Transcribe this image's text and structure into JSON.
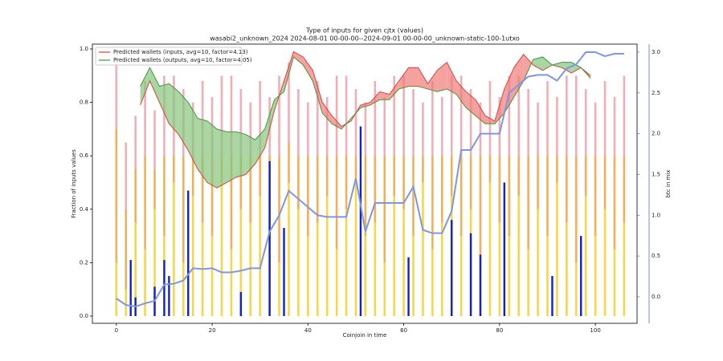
{
  "chart_data": {
    "type": "combo",
    "title": "Type of inputs for given cjtx (values)",
    "subtitle": "wasabi2_unknown_2024 2024-08-01 00-00-00--2024-09-01 00-00-00_unknown-static-100-1utxo",
    "xlabel": "Coinjoin in time",
    "ylabel": "Fraction of inputs values",
    "y2label": "btc in mix",
    "y2label_color": "#4a6ee0",
    "xlim": [
      -5,
      108.7
    ],
    "ylim": [
      -0.027,
      1.018
    ],
    "y2lim": [
      -0.325,
      3.098
    ],
    "xticks": [
      0,
      20,
      40,
      60,
      80,
      100
    ],
    "yticks": [
      {
        "value": 0,
        "label": "0.0"
      },
      {
        "value": 0.2,
        "label": "0.2"
      },
      {
        "value": 0.4,
        "label": "0.4"
      },
      {
        "value": 0.6,
        "label": "0.6"
      },
      {
        "value": 0.8,
        "label": "0.8"
      },
      {
        "value": 1,
        "label": "1.0"
      }
    ],
    "y2ticks": [
      {
        "value": 0,
        "label": "0.0"
      },
      {
        "value": 0.5,
        "label": "0.5"
      },
      {
        "value": 1,
        "label": "1.0"
      },
      {
        "value": 1.5,
        "label": "1.5"
      },
      {
        "value": 2,
        "label": "2.0"
      },
      {
        "value": 2.5,
        "label": "2.5"
      },
      {
        "value": 3,
        "label": "3.0"
      }
    ],
    "legend": "upper left",
    "bar_x": [
      0,
      2,
      4,
      6,
      8,
      10,
      12,
      14,
      16,
      18,
      20,
      22,
      24,
      26,
      28,
      30,
      32,
      34,
      36,
      38,
      40,
      42,
      44,
      46,
      48,
      50,
      52,
      54,
      56,
      58,
      60,
      62,
      64,
      66,
      68,
      70,
      72,
      74,
      76,
      78,
      80,
      82,
      84,
      86,
      88,
      90,
      92,
      94,
      96,
      98,
      100,
      102,
      104,
      106
    ],
    "stacks": [
      {
        "color": "#f5cf2a",
        "values": [
          0.2,
          0.1,
          0.35,
          0.25,
          0.4,
          0.3,
          0.5,
          0.2,
          0.45,
          0.35,
          0.3,
          0.5,
          0.25,
          0.4,
          0.35,
          0.45,
          0.3,
          0.2,
          0.5,
          0.4,
          0.3,
          0.35,
          0.45,
          0.25,
          0.4,
          0.5,
          0.3,
          0.35,
          0.2,
          0.45,
          0.4,
          0.3,
          0.5,
          0.25,
          0.35,
          0.45,
          0.3,
          0.4,
          0.2,
          0.5,
          0.35,
          0.3,
          0.45,
          0.25,
          0.4,
          0.3,
          0.5,
          0.35,
          0.2,
          0.45,
          0.3,
          0.4,
          0.25,
          0.35
        ]
      },
      {
        "color": "#eea23a",
        "values": [
          0.5,
          0.3,
          0.2,
          0.35,
          0.15,
          0.3,
          0.1,
          0.4,
          0.15,
          0.25,
          0.3,
          0.1,
          0.35,
          0.2,
          0.25,
          0.15,
          0.3,
          0.4,
          0.15,
          0.2,
          0.3,
          0.25,
          0.15,
          0.35,
          0.2,
          0.1,
          0.3,
          0.25,
          0.4,
          0.15,
          0.2,
          0.3,
          0.1,
          0.35,
          0.25,
          0.15,
          0.3,
          0.2,
          0.4,
          0.1,
          0.25,
          0.3,
          0.15,
          0.35,
          0.2,
          0.3,
          0.1,
          0.25,
          0.4,
          0.15,
          0.3,
          0.2,
          0.35,
          0.25
        ]
      },
      {
        "color": "#eea0a8",
        "values": [
          0.3,
          0.25,
          0.2,
          0.28,
          0.22,
          0.3,
          0.3,
          0.25,
          0.2,
          0.28,
          0.22,
          0.3,
          0.3,
          0.25,
          0.2,
          0.28,
          0.22,
          0.3,
          0.3,
          0.25,
          0.2,
          0.28,
          0.22,
          0.3,
          0.3,
          0.25,
          0.2,
          0.28,
          0.22,
          0.3,
          0.3,
          0.25,
          0.2,
          0.28,
          0.22,
          0.3,
          0.3,
          0.25,
          0.2,
          0.28,
          0.22,
          0.3,
          0.3,
          0.25,
          0.2,
          0.28,
          0.22,
          0.3,
          0.3,
          0.25,
          0.2,
          0.28,
          0.22,
          0.3
        ]
      }
    ],
    "blue_bars": {
      "color": "#1020d8",
      "x": [
        3,
        4,
        8,
        10,
        11,
        15,
        26,
        32,
        35,
        51,
        61,
        70,
        74,
        76,
        81,
        91,
        97
      ],
      "values": [
        0.21,
        0.07,
        0.11,
        0.21,
        0.15,
        0.47,
        0.09,
        0.58,
        0.33,
        0.71,
        0.22,
        0.36,
        0.31,
        0.23,
        0.5,
        0.15,
        0.3
      ]
    },
    "series": [
      {
        "name": "Predicted wallets (inputs, avg=10, factor=4.13)",
        "color": "#e0403c",
        "fill": "#f07a78",
        "x": [
          5,
          7,
          9,
          11,
          13,
          15,
          17,
          19,
          21,
          23,
          25,
          27,
          29,
          31,
          33,
          35,
          37,
          39,
          41,
          43,
          45,
          47,
          49,
          51,
          53,
          55,
          57,
          59,
          61,
          63,
          65,
          67,
          69,
          71,
          73,
          75,
          77,
          79,
          81,
          83,
          85,
          87,
          89,
          91,
          93,
          95,
          97,
          99
        ],
        "values": [
          0.79,
          0.88,
          0.8,
          0.72,
          0.68,
          0.62,
          0.55,
          0.5,
          0.48,
          0.5,
          0.52,
          0.53,
          0.57,
          0.63,
          0.77,
          0.88,
          0.99,
          0.97,
          0.92,
          0.8,
          0.75,
          0.71,
          0.73,
          0.79,
          0.8,
          0.84,
          0.83,
          0.88,
          0.93,
          0.93,
          0.87,
          0.92,
          0.95,
          0.88,
          0.84,
          0.81,
          0.75,
          0.73,
          0.85,
          0.93,
          0.98,
          0.94,
          0.92,
          0.94,
          0.93,
          0.91,
          0.93,
          0.9
        ]
      },
      {
        "name": "Predicted wallets (outputs, avg=10, factor=4.05)",
        "color": "#3a9a3a",
        "fill": "#84c47c",
        "x": [
          5,
          7,
          9,
          11,
          13,
          15,
          17,
          19,
          21,
          23,
          25,
          27,
          29,
          31,
          33,
          35,
          37,
          39,
          41,
          43,
          45,
          47,
          49,
          51,
          53,
          55,
          57,
          59,
          61,
          63,
          65,
          67,
          69,
          71,
          73,
          75,
          77,
          79,
          81,
          83,
          85,
          87,
          89,
          91,
          93,
          95,
          97,
          99
        ],
        "values": [
          0.86,
          0.93,
          0.86,
          0.87,
          0.84,
          0.8,
          0.74,
          0.73,
          0.7,
          0.69,
          0.69,
          0.68,
          0.66,
          0.7,
          0.81,
          0.84,
          0.97,
          0.94,
          0.88,
          0.76,
          0.72,
          0.7,
          0.74,
          0.78,
          0.79,
          0.81,
          0.81,
          0.85,
          0.86,
          0.86,
          0.85,
          0.84,
          0.85,
          0.83,
          0.78,
          0.75,
          0.72,
          0.72,
          0.76,
          0.82,
          0.88,
          0.96,
          0.97,
          0.94,
          0.95,
          0.95,
          0.93,
          0.89
        ]
      }
    ],
    "btc": {
      "color": "#7f96e0",
      "axis": "y2",
      "x": [
        0,
        2,
        4,
        6,
        8,
        10,
        12,
        14,
        16,
        18,
        20,
        22,
        24,
        26,
        28,
        30,
        32,
        34,
        36,
        38,
        40,
        42,
        44,
        46,
        48,
        50,
        52,
        54,
        56,
        58,
        60,
        62,
        64,
        66,
        68,
        70,
        72,
        74,
        76,
        78,
        80,
        82,
        84,
        86,
        88,
        90,
        92,
        94,
        96,
        98,
        100,
        102,
        104,
        106
      ],
      "values": [
        -0.02,
        -0.1,
        -0.12,
        -0.08,
        -0.05,
        0.15,
        0.16,
        0.2,
        0.35,
        0.34,
        0.35,
        0.3,
        0.3,
        0.32,
        0.35,
        0.35,
        0.8,
        1,
        1.3,
        1.2,
        1.1,
        1,
        0.98,
        0.98,
        0.98,
        1.45,
        0.8,
        1.15,
        1.15,
        1.15,
        1.15,
        1.35,
        0.82,
        0.78,
        0.78,
        1.05,
        1.8,
        1.8,
        2,
        2,
        2,
        2.5,
        2.6,
        2.7,
        2.72,
        2.72,
        2.65,
        2.8,
        2.85,
        3,
        3,
        2.95,
        2.98,
        2.98
      ]
    }
  }
}
